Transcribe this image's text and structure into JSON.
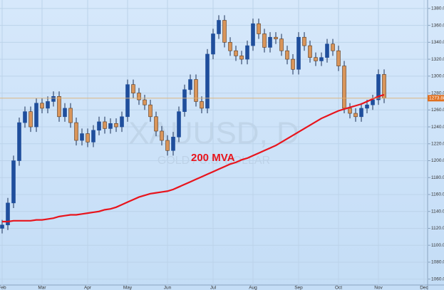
{
  "chart_data": {
    "type": "candlestick",
    "watermark": "XAUUSD, D",
    "watermark_subtitle": "GOLD / U.S. DOLLAR",
    "categories": [
      "Feb",
      null,
      null,
      null,
      null,
      null,
      null,
      "Mar",
      null,
      null,
      null,
      null,
      null,
      null,
      null,
      "Apr",
      null,
      null,
      null,
      null,
      null,
      null,
      "May",
      null,
      null,
      null,
      null,
      null,
      null,
      "Jun",
      null,
      null,
      null,
      null,
      null,
      null,
      null,
      "Jul",
      null,
      null,
      null,
      null,
      null,
      null,
      "Aug",
      null,
      null,
      null,
      null,
      null,
      null,
      null,
      "Sep",
      null,
      null,
      null,
      null,
      null,
      null,
      "Oct",
      null,
      null,
      null,
      null,
      null,
      null,
      "Nov",
      null,
      null,
      null,
      null,
      null,
      null,
      null,
      "Dec"
    ],
    "open": [
      1120,
      1124,
      1150,
      1200,
      1245,
      1258,
      1240,
      1268,
      1262,
      1270,
      1276,
      1252,
      1262,
      1245,
      1224,
      1232,
      1222,
      1236,
      1246,
      1238,
      1244,
      1240,
      1252,
      1290,
      1280,
      1272,
      1266,
      1252,
      1235,
      1224,
      1212,
      1228,
      1258,
      1284,
      1296,
      1270,
      1262,
      1326,
      1350,
      1366,
      1340,
      1330,
      1324,
      1320,
      1336,
      1362,
      1350,
      1334,
      1346,
      1344,
      1330,
      1320,
      1308,
      1346,
      1336,
      1322,
      1318,
      1322,
      1338,
      1330,
      1312,
      1262,
      1256,
      1252,
      1262,
      1266,
      1272,
      1302,
      null,
      null,
      null,
      null,
      null,
      null,
      null
    ],
    "high": [
      1130,
      1156,
      1206,
      1251,
      1264,
      1264,
      1274,
      1274,
      1276,
      1282,
      1282,
      1268,
      1268,
      1251,
      1238,
      1238,
      1242,
      1252,
      1252,
      1250,
      1250,
      1258,
      1296,
      1296,
      1286,
      1278,
      1272,
      1258,
      1241,
      1230,
      1234,
      1264,
      1290,
      1302,
      1302,
      1276,
      1332,
      1356,
      1372,
      1372,
      1346,
      1336,
      1330,
      1342,
      1368,
      1368,
      1356,
      1352,
      1352,
      1350,
      1336,
      1326,
      1352,
      1352,
      1342,
      1328,
      1328,
      1344,
      1344,
      1336,
      1318,
      1268,
      1262,
      1268,
      1272,
      1278,
      1308,
      1308,
      null,
      null,
      null,
      null,
      null,
      null,
      null
    ],
    "low": [
      1114,
      1118,
      1144,
      1194,
      1239,
      1234,
      1234,
      1256,
      1256,
      1264,
      1246,
      1246,
      1239,
      1218,
      1218,
      1216,
      1216,
      1230,
      1232,
      1232,
      1234,
      1234,
      1246,
      1274,
      1266,
      1260,
      1246,
      1229,
      1218,
      1206,
      1206,
      1222,
      1252,
      1278,
      1264,
      1256,
      1256,
      1320,
      1344,
      1334,
      1324,
      1318,
      1314,
      1314,
      1330,
      1344,
      1328,
      1328,
      1338,
      1324,
      1314,
      1302,
      1302,
      1330,
      1316,
      1312,
      1312,
      1316,
      1324,
      1306,
      1256,
      1250,
      1246,
      1246,
      1256,
      1260,
      1266,
      1268,
      null,
      null,
      null,
      null,
      null,
      null,
      null
    ],
    "close": [
      1124,
      1150,
      1200,
      1245,
      1258,
      1240,
      1268,
      1262,
      1270,
      1276,
      1252,
      1262,
      1245,
      1224,
      1232,
      1222,
      1236,
      1246,
      1238,
      1244,
      1240,
      1252,
      1290,
      1280,
      1272,
      1266,
      1252,
      1235,
      1224,
      1212,
      1228,
      1258,
      1284,
      1296,
      1270,
      1262,
      1326,
      1350,
      1366,
      1340,
      1330,
      1324,
      1320,
      1336,
      1362,
      1350,
      1334,
      1346,
      1344,
      1330,
      1320,
      1308,
      1346,
      1336,
      1322,
      1318,
      1322,
      1338,
      1330,
      1312,
      1262,
      1256,
      1252,
      1262,
      1266,
      1272,
      1302,
      1274,
      null,
      null,
      null,
      null,
      null,
      null,
      null
    ],
    "up_color": "#1f4e9c",
    "down_color": "#d9955a",
    "series": [
      {
        "name": "200 MVA",
        "color": "#e8141c",
        "values": [
          1128,
          1128,
          1129,
          1129,
          1129,
          1129,
          1130,
          1130,
          1131,
          1132,
          1134,
          1135,
          1136,
          1136,
          1137,
          1138,
          1139,
          1140,
          1142,
          1143,
          1145,
          1148,
          1151,
          1154,
          1157,
          1159,
          1161,
          1162,
          1163,
          1164,
          1166,
          1169,
          1172,
          1175,
          1178,
          1181,
          1184,
          1187,
          1190,
          1193,
          1196,
          1198,
          1201,
          1203,
          1206,
          1209,
          1212,
          1215,
          1218,
          1222,
          1226,
          1230,
          1234,
          1238,
          1242,
          1246,
          1250,
          1253,
          1256,
          1259,
          1261,
          1263,
          1265,
          1267,
          1270,
          1273,
          1276,
          1278,
          null,
          null,
          null,
          null,
          null,
          null,
          null
        ]
      }
    ],
    "last_price": 1273.88,
    "ylim": [
      1053,
      1390
    ],
    "yticks": [
      {
        "value": 1060,
        "label": "1060.00"
      },
      {
        "value": 1080,
        "label": "1080.00"
      },
      {
        "value": 1100,
        "label": "1100.00"
      },
      {
        "value": 1120,
        "label": "1120.00"
      },
      {
        "value": 1140,
        "label": "1140.00"
      },
      {
        "value": 1160,
        "label": "1160.00"
      },
      {
        "value": 1180,
        "label": "1180.00"
      },
      {
        "value": 1200,
        "label": "1200.00"
      },
      {
        "value": 1220,
        "label": "1220.00"
      },
      {
        "value": 1240,
        "label": "1240.00"
      },
      {
        "value": 1260,
        "label": "1260.00"
      },
      {
        "value": 1280,
        "label": "1280.00"
      },
      {
        "value": 1300,
        "label": "1300.00"
      },
      {
        "value": 1320,
        "label": "1320.00"
      },
      {
        "value": 1340,
        "label": "1340.00"
      },
      {
        "value": 1360,
        "label": "1360.00"
      },
      {
        "value": 1380,
        "label": "1380.00"
      }
    ],
    "grid": true
  }
}
